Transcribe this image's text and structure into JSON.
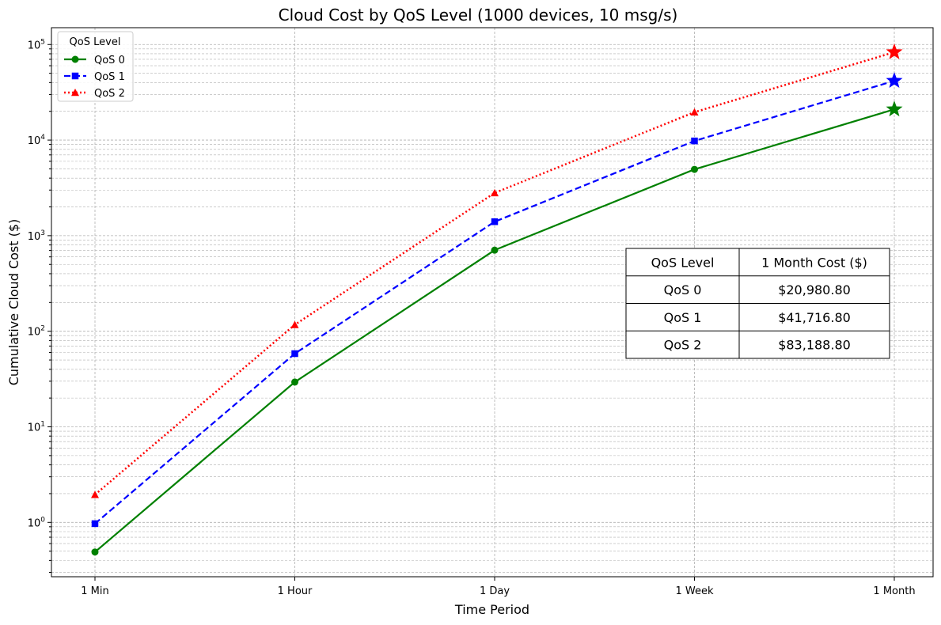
{
  "chart_data": {
    "type": "line",
    "title": "Cloud Cost by QoS Level (1000 devices, 10 msg/s)",
    "xlabel": "Time Period",
    "ylabel": "Cumulative Cloud Cost ($)",
    "yscale": "log",
    "ylim": [
      0.27,
      150000
    ],
    "categories": [
      "1 Min",
      "1 Hour",
      "1 Day",
      "1 Week",
      "1 Month"
    ],
    "y_ticks": [
      {
        "base": "10",
        "exp": "0",
        "value": 1
      },
      {
        "base": "10",
        "exp": "1",
        "value": 10
      },
      {
        "base": "10",
        "exp": "2",
        "value": 100
      },
      {
        "base": "10",
        "exp": "3",
        "value": 1000
      },
      {
        "base": "10",
        "exp": "4",
        "value": 10000
      },
      {
        "base": "10",
        "exp": "5",
        "value": 100000
      }
    ],
    "grid": true,
    "legend": {
      "title": "QoS Level",
      "placement": "top-left"
    },
    "series": [
      {
        "name": "QoS 0",
        "values": [
          0.49,
          29.4,
          706,
          4940,
          20980.8
        ],
        "color": "#008000",
        "marker": "circle",
        "dash": "solid"
      },
      {
        "name": "QoS 1",
        "values": [
          0.97,
          58.3,
          1400,
          9800,
          41716.8
        ],
        "color": "#0000ff",
        "marker": "square",
        "dash": "dashed"
      },
      {
        "name": "QoS 2",
        "values": [
          1.95,
          117,
          2800,
          19600,
          83188.8
        ],
        "color": "#ff0000",
        "marker": "triangle",
        "dash": "dotted"
      }
    ],
    "table": {
      "headers": [
        "QoS Level",
        "1 Month Cost ($)"
      ],
      "rows": [
        [
          "QoS 0",
          "$20,980.80"
        ],
        [
          "QoS 1",
          "$41,716.80"
        ],
        [
          "QoS 2",
          "$83,188.80"
        ]
      ]
    }
  }
}
